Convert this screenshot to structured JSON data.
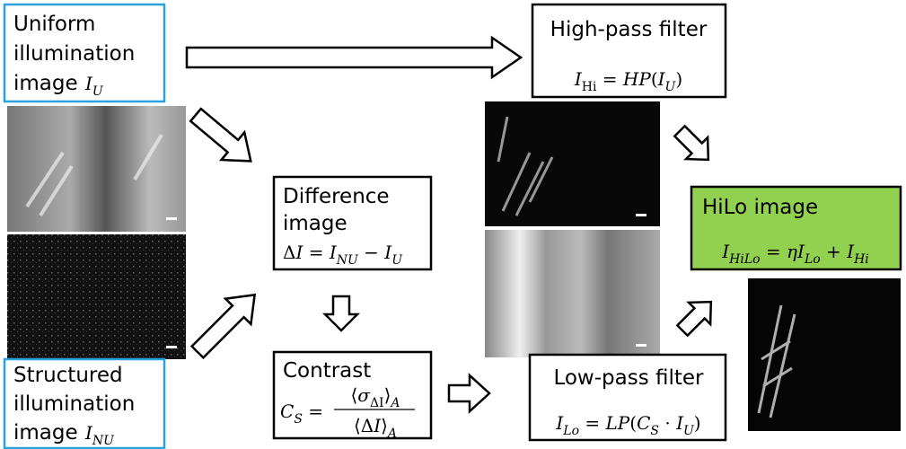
{
  "nodes": [
    {
      "lines": [
        "Uniform",
        "illumination",
        "image"
      ],
      "formula": [
        {
          "text": "I",
          "italic": true
        },
        {
          "text": "U",
          "sub": true,
          "italic": true
        }
      ]
    },
    {
      "lines": [
        "Structured",
        "illumination",
        "image"
      ],
      "formula": [
        {
          "text": "I",
          "italic": true
        },
        {
          "text": "NU",
          "sub": true,
          "italic": true
        }
      ]
    },
    {
      "lines": [
        "High-pass filter"
      ],
      "formula": [
        {
          "text": "I",
          "italic": true
        },
        {
          "text": "Hi",
          "sub": true
        },
        {
          "text": " = "
        },
        {
          "text": "HP",
          "italic": true
        },
        {
          "text": "("
        },
        {
          "text": "I",
          "italic": true
        },
        {
          "text": "U",
          "sub": true,
          "italic": true
        },
        {
          "text": ")"
        }
      ]
    },
    {
      "lines": [
        "Difference",
        "image"
      ],
      "formula": [
        {
          "text": "Δ"
        },
        {
          "text": "I",
          "italic": true
        },
        {
          "text": " = "
        },
        {
          "text": "I",
          "italic": true
        },
        {
          "text": "NU",
          "sub": true,
          "italic": true
        },
        {
          "text": " − "
        },
        {
          "text": "I",
          "italic": true
        },
        {
          "text": "U",
          "sub": true,
          "italic": true
        }
      ]
    },
    {
      "lines": [
        "Contrast"
      ],
      "formula": [
        {
          "text": "C",
          "italic": true
        },
        {
          "text": "S",
          "sub": true,
          "italic": true
        },
        {
          "text": " = "
        }
      ],
      "numerator": [
        {
          "text": "⟨"
        },
        {
          "text": "σ",
          "italic": true
        },
        {
          "text": "ΔI",
          "sub": true
        },
        {
          "text": "⟩"
        },
        {
          "text": "A",
          "sub": true,
          "italic": true
        }
      ],
      "denominator": [
        {
          "text": "⟨Δ"
        },
        {
          "text": "I",
          "italic": true
        },
        {
          "text": "⟩"
        },
        {
          "text": "A",
          "sub": true,
          "italic": true
        }
      ]
    },
    {
      "lines": [
        "Low-pass filter"
      ],
      "formula": [
        {
          "text": "I",
          "italic": true
        },
        {
          "text": "Lo",
          "sub": true,
          "italic": true
        },
        {
          "text": " = "
        },
        {
          "text": "LP",
          "italic": true
        },
        {
          "text": "("
        },
        {
          "text": "C",
          "italic": true
        },
        {
          "text": "S",
          "sub": true,
          "italic": true
        },
        {
          "text": " · "
        },
        {
          "text": "I",
          "italic": true
        },
        {
          "text": "U",
          "sub": true,
          "italic": true
        },
        {
          "text": ")"
        }
      ]
    },
    {
      "lines": [
        "HiLo image"
      ],
      "formula": [
        {
          "text": "I",
          "italic": true
        },
        {
          "text": "HiLo",
          "sub": true,
          "italic": true
        },
        {
          "text": " = "
        },
        {
          "text": "η",
          "italic": true
        },
        {
          "text": "I",
          "italic": true
        },
        {
          "text": "Lo",
          "sub": true,
          "italic": true
        },
        {
          "text": " + "
        },
        {
          "text": "I",
          "italic": true
        },
        {
          "text": "Hi",
          "sub": true,
          "italic": true
        }
      ]
    }
  ]
}
